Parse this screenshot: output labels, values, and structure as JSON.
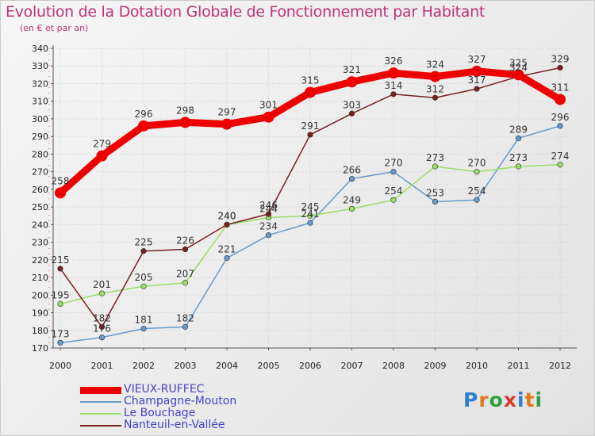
{
  "title": "Evolution de la Dotation Globale de Fonctionnement par Habitant",
  "subtitle": "(en € et par an)",
  "logo": {
    "text": "Proxiti",
    "colors": [
      "#2f7fd0",
      "#e07a20",
      "#2f9f3f",
      "#d83a2a",
      "#2f7fd0",
      "#e07a20",
      "#2f9f3f"
    ]
  },
  "chart_data": {
    "type": "line",
    "x": [
      "2000",
      "2001",
      "2002",
      "2003",
      "2004",
      "2005",
      "2006",
      "2007",
      "2008",
      "2009",
      "2010",
      "2011",
      "2012"
    ],
    "ylim": [
      170,
      340
    ],
    "yticks": [
      170,
      180,
      190,
      200,
      210,
      220,
      230,
      240,
      250,
      260,
      270,
      280,
      290,
      300,
      310,
      320,
      330,
      340
    ],
    "grid": true,
    "legend_position": "bottom-left",
    "series": [
      {
        "name": "VIEUX-RUFFEC",
        "color": "#ee0000",
        "emphasis": true,
        "values": [
          258,
          279,
          296,
          298,
          297,
          301,
          315,
          321,
          326,
          324,
          327,
          325,
          311
        ]
      },
      {
        "name": "Champagne-Mouton",
        "color": "#6699cc",
        "values": [
          173,
          176,
          181,
          182,
          221,
          234,
          241,
          266,
          270,
          253,
          254,
          289,
          296
        ]
      },
      {
        "name": "Le Bouchage",
        "color": "#99dd66",
        "values": [
          195,
          201,
          205,
          207,
          240,
          244,
          245,
          249,
          254,
          273,
          270,
          273,
          274
        ]
      },
      {
        "name": "Nanteuil-en-Vallée",
        "color": "#7a1f1f",
        "values": [
          215,
          182,
          225,
          226,
          240,
          246,
          291,
          303,
          314,
          312,
          317,
          324,
          329
        ]
      }
    ]
  }
}
